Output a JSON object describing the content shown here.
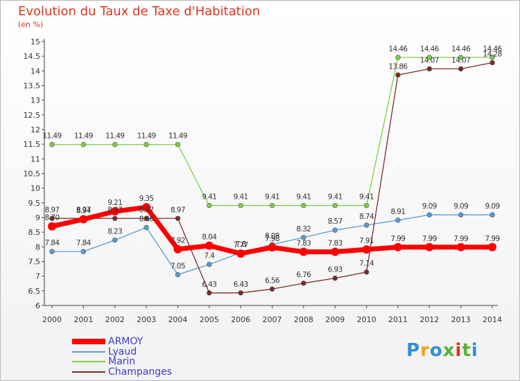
{
  "title": "Evolution du Taux de Taxe d'Habitation",
  "unit": "(en %)",
  "logo": {
    "text": "Proxiti",
    "colors": [
      "#2f8fd8",
      "#f0a21c",
      "#2f8fd8",
      "#59b33c",
      "#e0341c",
      "#59b33c",
      "#2f8fd8"
    ]
  },
  "chart_data": {
    "type": "line",
    "x": [
      "2000",
      "2001",
      "2002",
      "2003",
      "2004",
      "2005",
      "2006",
      "2007",
      "2008",
      "2009",
      "2010",
      "2011",
      "2012",
      "2013",
      "2014"
    ],
    "ylim": [
      6,
      15
    ],
    "yticks": [
      "6",
      "6.5",
      "7",
      "7.5",
      "8",
      "8.5",
      "9",
      "9.5",
      "10",
      "10.5",
      "11",
      "11.5",
      "12",
      "12.5",
      "13",
      "13.5",
      "14",
      "14.5",
      "15"
    ],
    "grid": false,
    "legend_position": "bottom-left",
    "series": [
      {
        "name": "ARMOY",
        "color": "#ff0000",
        "values": [
          8.7,
          8.94,
          9.21,
          9.35,
          7.92,
          8.04,
          7.77,
          7.98,
          7.83,
          7.83,
          7.91,
          7.99,
          7.99,
          7.99,
          7.99
        ],
        "labels": [
          "8.70",
          "8.94",
          "9.21",
          "9.35",
          "7.92",
          "8.04",
          "7.77",
          "7.98",
          "7.83",
          "7.83",
          "7.91",
          "7.99",
          "7.99",
          "7.99",
          "7.99"
        ]
      },
      {
        "name": "Lyaud",
        "color": "#5a9ad4",
        "values": [
          7.84,
          7.84,
          8.23,
          8.66,
          7.05,
          7.4,
          7.8,
          8.08,
          8.32,
          8.57,
          8.74,
          8.91,
          9.09,
          9.09,
          9.09
        ],
        "labels": [
          "7.84",
          "7.84",
          "8.23",
          "8.66",
          "7.05",
          "7.4",
          "7.8",
          "8.08",
          "8.32",
          "8.57",
          "8.74",
          "8.91",
          "9.09",
          "9.09",
          "9.09"
        ]
      },
      {
        "name": "Marin",
        "color": "#7fcf3f",
        "values": [
          11.49,
          11.49,
          11.49,
          11.49,
          11.49,
          9.41,
          9.41,
          9.41,
          9.41,
          9.41,
          9.41,
          14.46,
          14.46,
          14.46,
          14.46
        ],
        "labels": [
          "11.49",
          "11.49",
          "11.49",
          "11.49",
          "11.49",
          "9.41",
          "9.41",
          "9.41",
          "9.41",
          "9.41",
          "9.41",
          "14.46",
          "14.46",
          "14.46",
          "14.46"
        ]
      },
      {
        "name": "Champanges",
        "color": "#7a2a2a",
        "values": [
          8.97,
          8.97,
          8.97,
          8.97,
          8.97,
          6.43,
          6.43,
          6.56,
          6.76,
          6.93,
          7.14,
          13.86,
          14.07,
          14.07,
          14.28
        ],
        "labels": [
          "8.97",
          "8.97",
          "8.97",
          "8.97",
          "8.97",
          "6.43",
          "6.43",
          "6.56",
          "6.76",
          "6.93",
          "7.14",
          "13.86",
          "14.07",
          "14.07",
          "14.28"
        ]
      }
    ]
  }
}
